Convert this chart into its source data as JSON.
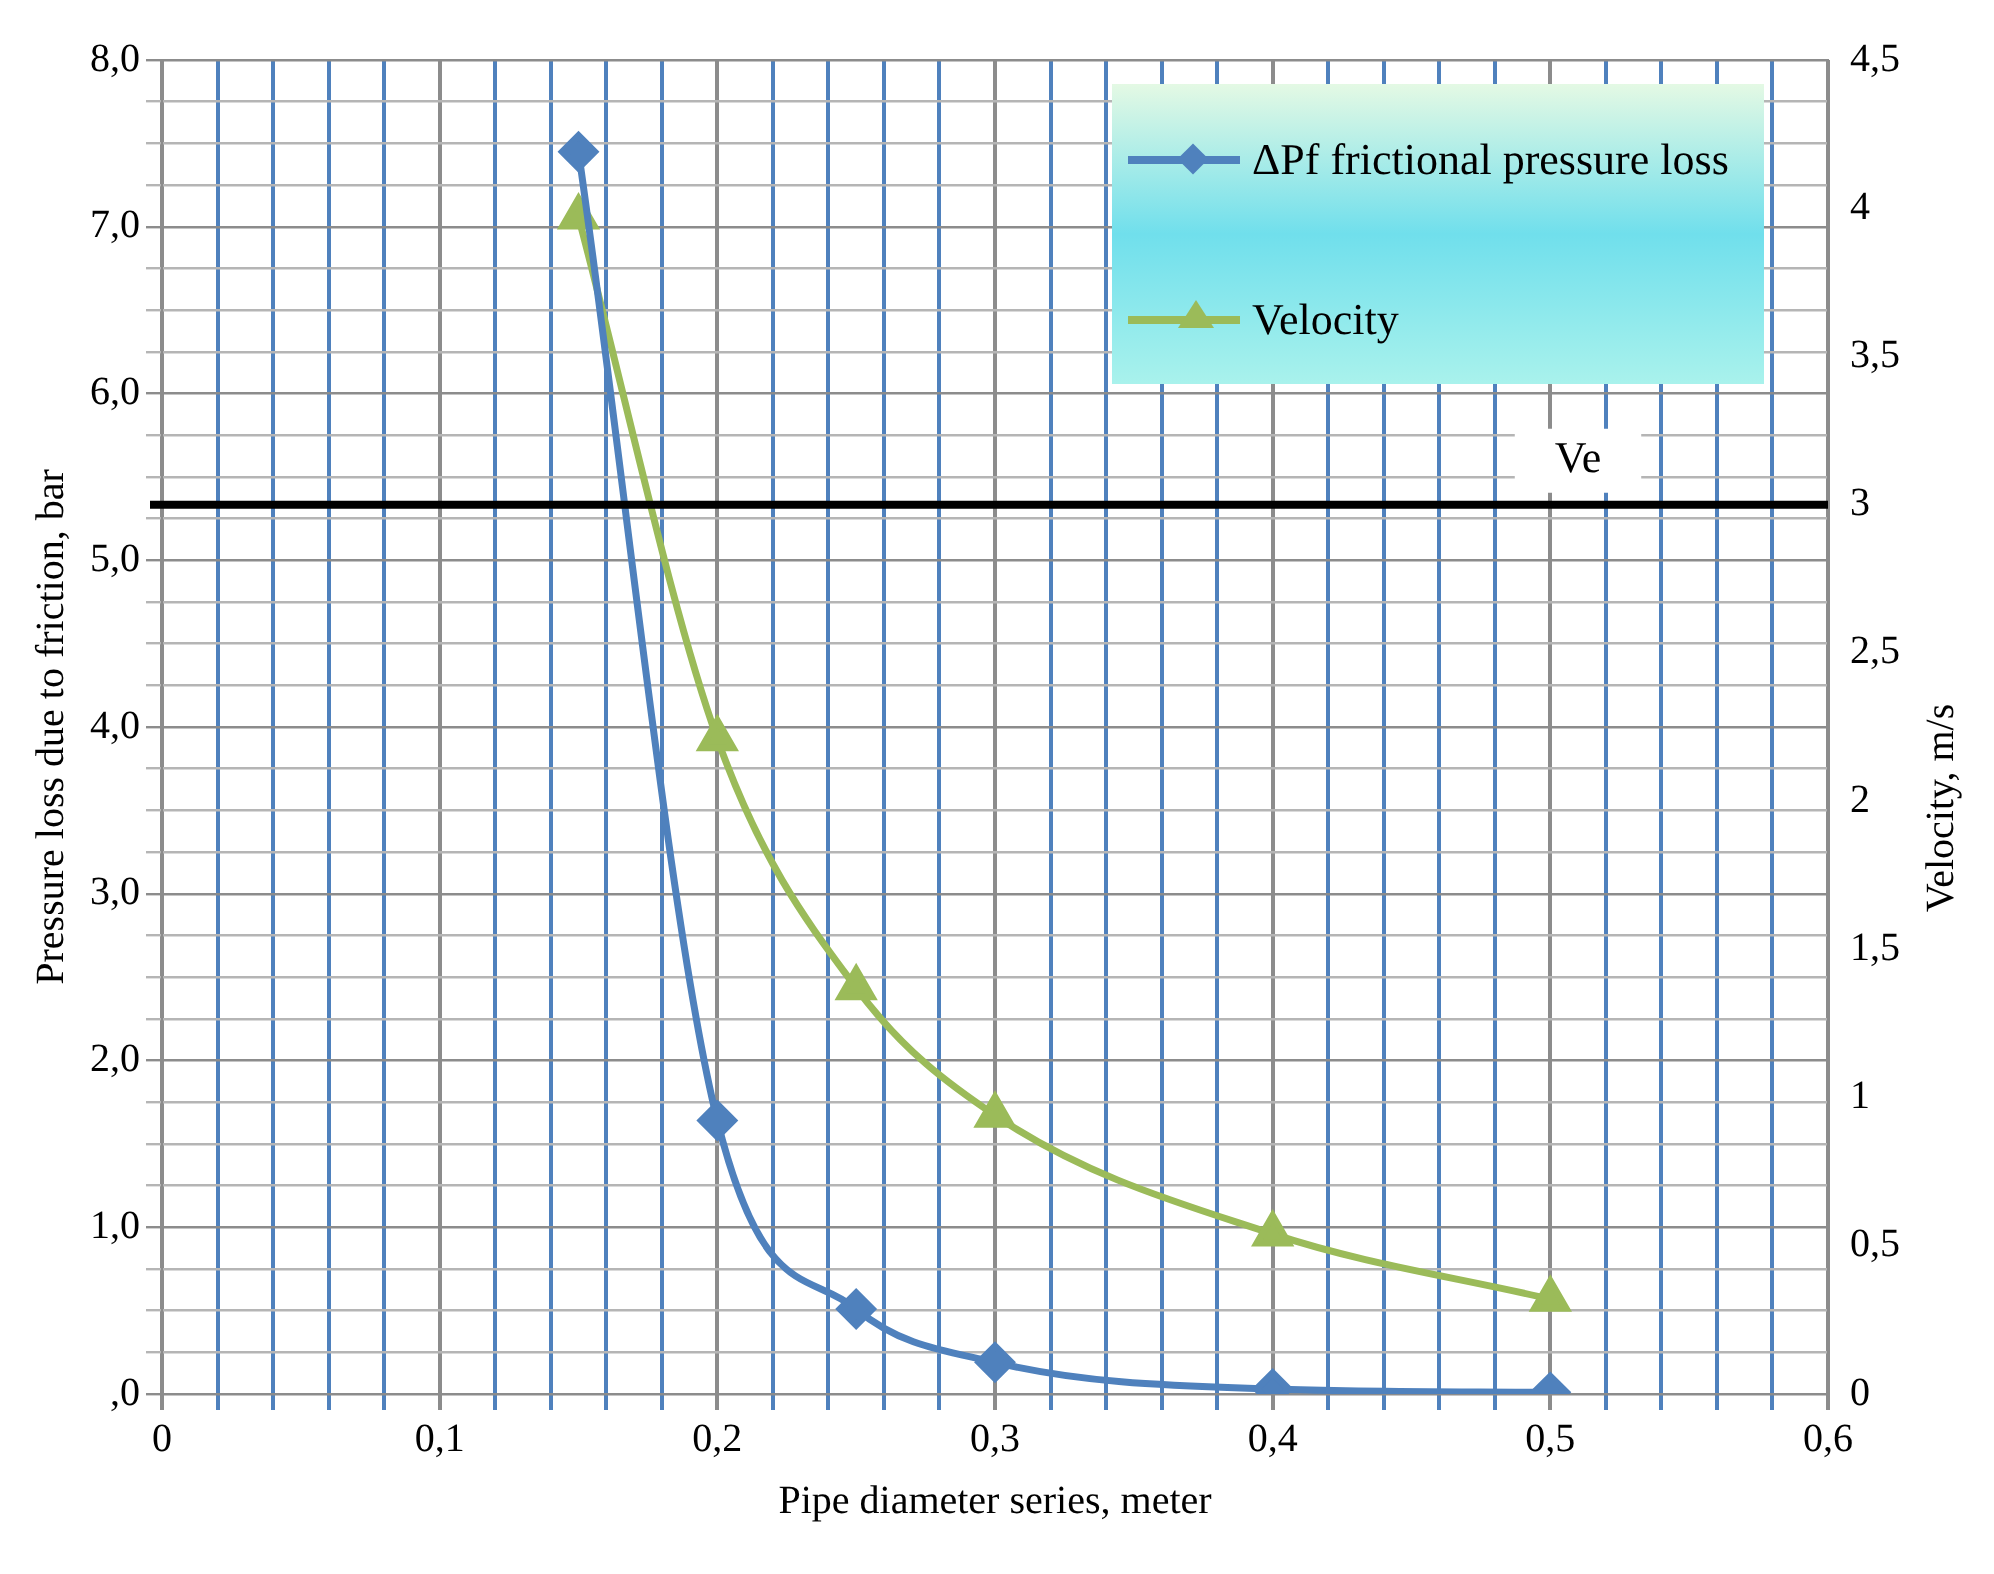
{
  "chart_data": {
    "type": "line",
    "xlabel": "Pipe diameter series, meter",
    "ylabel": "Pressure loss due to friction, bar",
    "y2label": "Velocity, m/s",
    "x": [
      0.15,
      0.2,
      0.25,
      0.3,
      0.4,
      0.5
    ],
    "series": [
      {
        "name": "ΔPf frictional pressure loss",
        "color": "#4f81bd",
        "marker": "diamond",
        "values": [
          7.45,
          1.64,
          0.51,
          0.19,
          0.03,
          0.01
        ]
      },
      {
        "name": "Velocity",
        "color": "#9bbb59",
        "marker": "triangle",
        "axis": "y2",
        "values": [
          3.97,
          2.21,
          1.37,
          0.94,
          0.54,
          0.32
        ]
      }
    ],
    "xlim": [
      0,
      0.6
    ],
    "xticks": [
      0,
      {
        "value": 0.02,
        "label": null
      },
      {
        "value": 0.04,
        "label": null
      },
      {
        "value": 0.06,
        "label": null
      },
      {
        "value": 0.08,
        "label": null
      },
      {
        "value": 0.1,
        "label": "0,1"
      },
      {
        "value": 0.12,
        "label": null
      },
      {
        "value": 0.14,
        "label": null
      },
      {
        "value": 0.16,
        "label": null
      },
      {
        "value": 0.18,
        "label": null
      },
      {
        "value": 0.2,
        "label": "0,2"
      },
      {
        "value": 0.22,
        "label": null
      },
      {
        "value": 0.24,
        "label": null
      },
      {
        "value": 0.26,
        "label": null
      },
      {
        "value": 0.28,
        "label": null
      },
      {
        "value": 0.3,
        "label": "0,3"
      },
      {
        "value": 0.32,
        "label": null
      },
      {
        "value": 0.34,
        "label": null
      },
      {
        "value": 0.36,
        "label": null
      },
      {
        "value": 0.38,
        "label": null
      },
      {
        "value": 0.4,
        "label": "0,4"
      },
      {
        "value": 0.42,
        "label": null
      },
      {
        "value": 0.44,
        "label": null
      },
      {
        "value": 0.46,
        "label": null
      },
      {
        "value": 0.48,
        "label": null
      },
      {
        "value": 0.5,
        "label": "0,5"
      },
      {
        "value": 0.52,
        "label": null
      },
      {
        "value": 0.54,
        "label": null
      },
      {
        "value": 0.56,
        "label": null
      },
      {
        "value": 0.58,
        "label": null
      },
      {
        "value": 0.6,
        "label": "0,6"
      }
    ],
    "ylim": [
      0,
      8
    ],
    "yticks": [
      {
        "value": 0,
        "label": ",0"
      },
      {
        "value": 0.25,
        "label": null
      },
      {
        "value": 0.5,
        "label": null
      },
      {
        "value": 0.75,
        "label": null
      },
      {
        "value": 1,
        "label": "1,0"
      },
      {
        "value": 1.25,
        "label": null
      },
      {
        "value": 1.5,
        "label": null
      },
      {
        "value": 1.75,
        "label": null
      },
      {
        "value": 2,
        "label": "2,0"
      },
      {
        "value": 2.25,
        "label": null
      },
      {
        "value": 2.5,
        "label": null
      },
      {
        "value": 2.75,
        "label": null
      },
      {
        "value": 3,
        "label": "3,0"
      },
      {
        "value": 3.25,
        "label": null
      },
      {
        "value": 3.5,
        "label": null
      },
      {
        "value": 3.75,
        "label": null
      },
      {
        "value": 4,
        "label": "4,0"
      },
      {
        "value": 4.25,
        "label": null
      },
      {
        "value": 4.5,
        "label": null
      },
      {
        "value": 4.75,
        "label": null
      },
      {
        "value": 5,
        "label": "5,0"
      },
      {
        "value": 5.25,
        "label": null
      },
      {
        "value": 5.5,
        "label": null
      },
      {
        "value": 5.75,
        "label": null
      },
      {
        "value": 6,
        "label": "6,0"
      },
      {
        "value": 6.25,
        "label": null
      },
      {
        "value": 6.5,
        "label": null
      },
      {
        "value": 6.75,
        "label": null
      },
      {
        "value": 7,
        "label": "7,0"
      },
      {
        "value": 7.25,
        "label": null
      },
      {
        "value": 7.5,
        "label": null
      },
      {
        "value": 7.75,
        "label": null
      },
      {
        "value": 8,
        "label": "8,0"
      }
    ],
    "y2lim": [
      0,
      4.5
    ],
    "y2ticks": [
      0,
      {
        "value": 0.5,
        "label": "0,5"
      },
      1,
      {
        "value": 1.5,
        "label": "1,5"
      },
      2,
      {
        "value": 2.5,
        "label": "2,5"
      },
      3,
      {
        "value": 3.5,
        "label": "3,5"
      },
      4,
      {
        "value": 4.5,
        "label": "4,5"
      }
    ],
    "ref_lines": [
      {
        "axis": "y2",
        "value": 3,
        "label": "Ve",
        "color": "#000000",
        "line_style": "solid"
      }
    ],
    "grid": true,
    "legend": "top right",
    "line_style": "solid"
  }
}
